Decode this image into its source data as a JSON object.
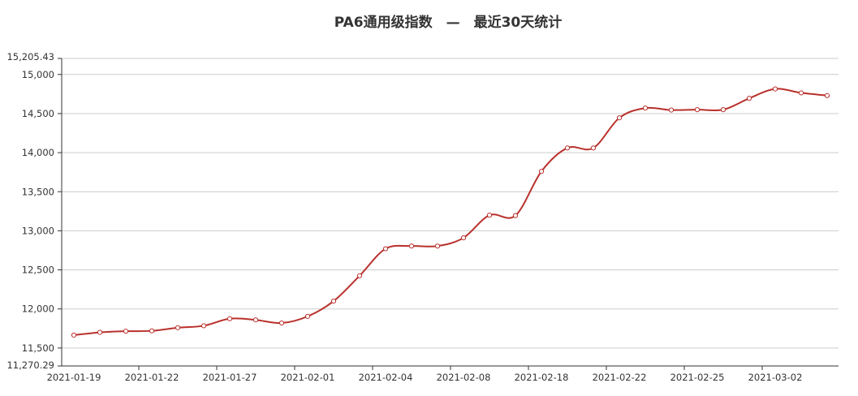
{
  "chart_data": {
    "type": "line",
    "title": "PA6通用级指数　—　最近30天统计",
    "xlabel": "",
    "ylabel": "",
    "ylim": [
      11270.29,
      15205.43
    ],
    "y_ticks": [
      "11,270.29",
      "11,500",
      "12,000",
      "12,500",
      "13,000",
      "13,500",
      "14,000",
      "14,500",
      "15,000",
      "15,205.43"
    ],
    "y_tick_values": [
      11270.29,
      11500,
      12000,
      12500,
      13000,
      13500,
      14000,
      14500,
      15000,
      15205.43
    ],
    "x_tick_labels": [
      "2021-01-19",
      "2021-01-22",
      "2021-01-27",
      "2021-02-01",
      "2021-02-04",
      "2021-02-08",
      "2021-02-18",
      "2021-02-22",
      "2021-02-25",
      "2021-03-02"
    ],
    "grid": true,
    "legend": "none",
    "line_color": "#b9312c",
    "series": [
      {
        "values": [
          11665,
          11700,
          11715,
          11720,
          11760,
          11785,
          11875,
          11860,
          11820,
          11905,
          12100,
          12425,
          12770,
          12805,
          12805,
          12910,
          13200,
          13195,
          13760,
          14060,
          14060,
          14445,
          14570,
          14545,
          14550,
          14550,
          14695,
          14815,
          14765,
          14730
        ]
      }
    ]
  }
}
